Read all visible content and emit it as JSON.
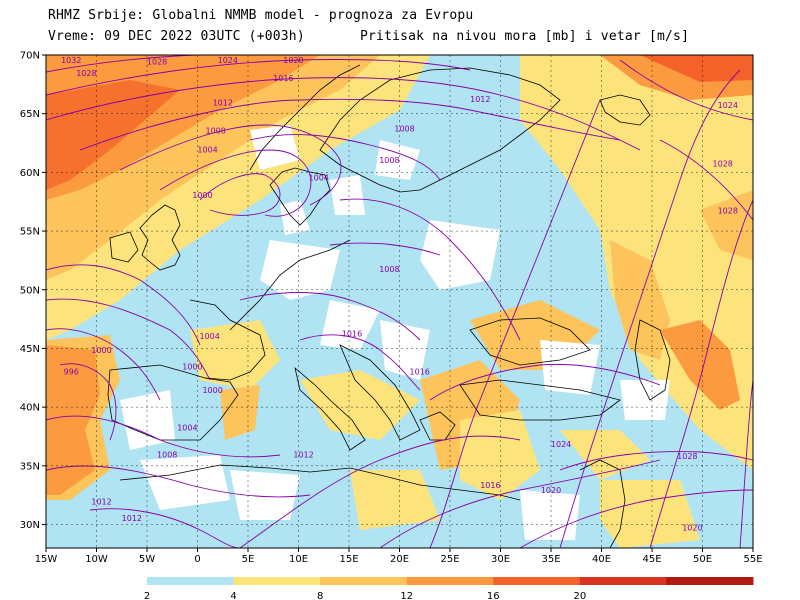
{
  "header": {
    "line1": "RHMZ Srbije: Globalni NMMB model - prognoza za Evropu",
    "line2": "Vreme: 09 DEC 2022 03UTC (+003h)",
    "line3": "Pritisak na nivou mora [mb] i vetar [m/s]"
  },
  "map": {
    "lon_range": [
      -15,
      55
    ],
    "lat_range": [
      28,
      70
    ],
    "lon_ticks": [
      -15,
      -10,
      -5,
      0,
      5,
      10,
      15,
      20,
      25,
      30,
      35,
      40,
      45,
      50,
      55
    ],
    "lon_labels": [
      "15W",
      "10W",
      "5W",
      "0",
      "5E",
      "10E",
      "15E",
      "20E",
      "25E",
      "30E",
      "35E",
      "40E",
      "45E",
      "50E",
      "55E"
    ],
    "lat_ticks": [
      30,
      35,
      40,
      45,
      50,
      55,
      60,
      65,
      70
    ],
    "lat_labels": [
      "30N",
      "35N",
      "40N",
      "45N",
      "50N",
      "55N",
      "60N",
      "65N",
      "70N"
    ],
    "isobar_color": "#8800aa",
    "isobar_labels": [
      {
        "text": "1032",
        "lon": -12.5,
        "lat": 69.3
      },
      {
        "text": "1028",
        "lon": -11,
        "lat": 68.2
      },
      {
        "text": "1028",
        "lon": -4,
        "lat": 69.2
      },
      {
        "text": "1024",
        "lon": 3,
        "lat": 69.3
      },
      {
        "text": "1020",
        "lon": 9.5,
        "lat": 69.3
      },
      {
        "text": "1016",
        "lon": 8.5,
        "lat": 67.8
      },
      {
        "text": "1012",
        "lon": 2.5,
        "lat": 65.7
      },
      {
        "text": "1008",
        "lon": 1.8,
        "lat": 63.3
      },
      {
        "text": "1004",
        "lon": 1,
        "lat": 61.7
      },
      {
        "text": "1000",
        "lon": 0.5,
        "lat": 57.8
      },
      {
        "text": "1004",
        "lon": 12,
        "lat": 59.3
      },
      {
        "text": "1008",
        "lon": 20.5,
        "lat": 63.5
      },
      {
        "text": "1008",
        "lon": 19,
        "lat": 60.8
      },
      {
        "text": "1012",
        "lon": 28,
        "lat": 66.0
      },
      {
        "text": "1008",
        "lon": 19,
        "lat": 51.5
      },
      {
        "text": "1004",
        "lon": 1.2,
        "lat": 45.8
      },
      {
        "text": "1000",
        "lon": -9.5,
        "lat": 44.6
      },
      {
        "text": "996",
        "lon": -12.5,
        "lat": 42.8
      },
      {
        "text": "1000",
        "lon": -0.5,
        "lat": 43.2
      },
      {
        "text": "1000",
        "lon": 1.5,
        "lat": 41.2
      },
      {
        "text": "1004",
        "lon": -1,
        "lat": 38.0
      },
      {
        "text": "1008",
        "lon": -3,
        "lat": 35.7
      },
      {
        "text": "1012",
        "lon": -9.5,
        "lat": 31.7
      },
      {
        "text": "1012",
        "lon": -6.5,
        "lat": 30.3
      },
      {
        "text": "1012",
        "lon": 10.5,
        "lat": 35.7
      },
      {
        "text": "1016",
        "lon": 22,
        "lat": 42.8
      },
      {
        "text": "1016",
        "lon": 15.3,
        "lat": 46.0
      },
      {
        "text": "1016",
        "lon": 29,
        "lat": 33.1
      },
      {
        "text": "1020",
        "lon": 35,
        "lat": 32.7
      },
      {
        "text": "1024",
        "lon": 36,
        "lat": 36.6
      },
      {
        "text": "1028",
        "lon": 48.5,
        "lat": 35.6
      },
      {
        "text": "1020",
        "lon": 49,
        "lat": 29.5
      },
      {
        "text": "1024",
        "lon": 52.5,
        "lat": 65.5
      },
      {
        "text": "1028",
        "lon": 52,
        "lat": 60.5
      },
      {
        "text": "1028",
        "lon": 52.5,
        "lat": 56.5
      }
    ]
  },
  "legend": {
    "labels": [
      "2",
      "4",
      "8",
      "12",
      "16",
      "20"
    ],
    "colors": [
      "#b0e4f2",
      "#fde37c",
      "#fcc45a",
      "#fb9a3e",
      "#f4622a",
      "#d8341f",
      "#b01a10"
    ]
  }
}
